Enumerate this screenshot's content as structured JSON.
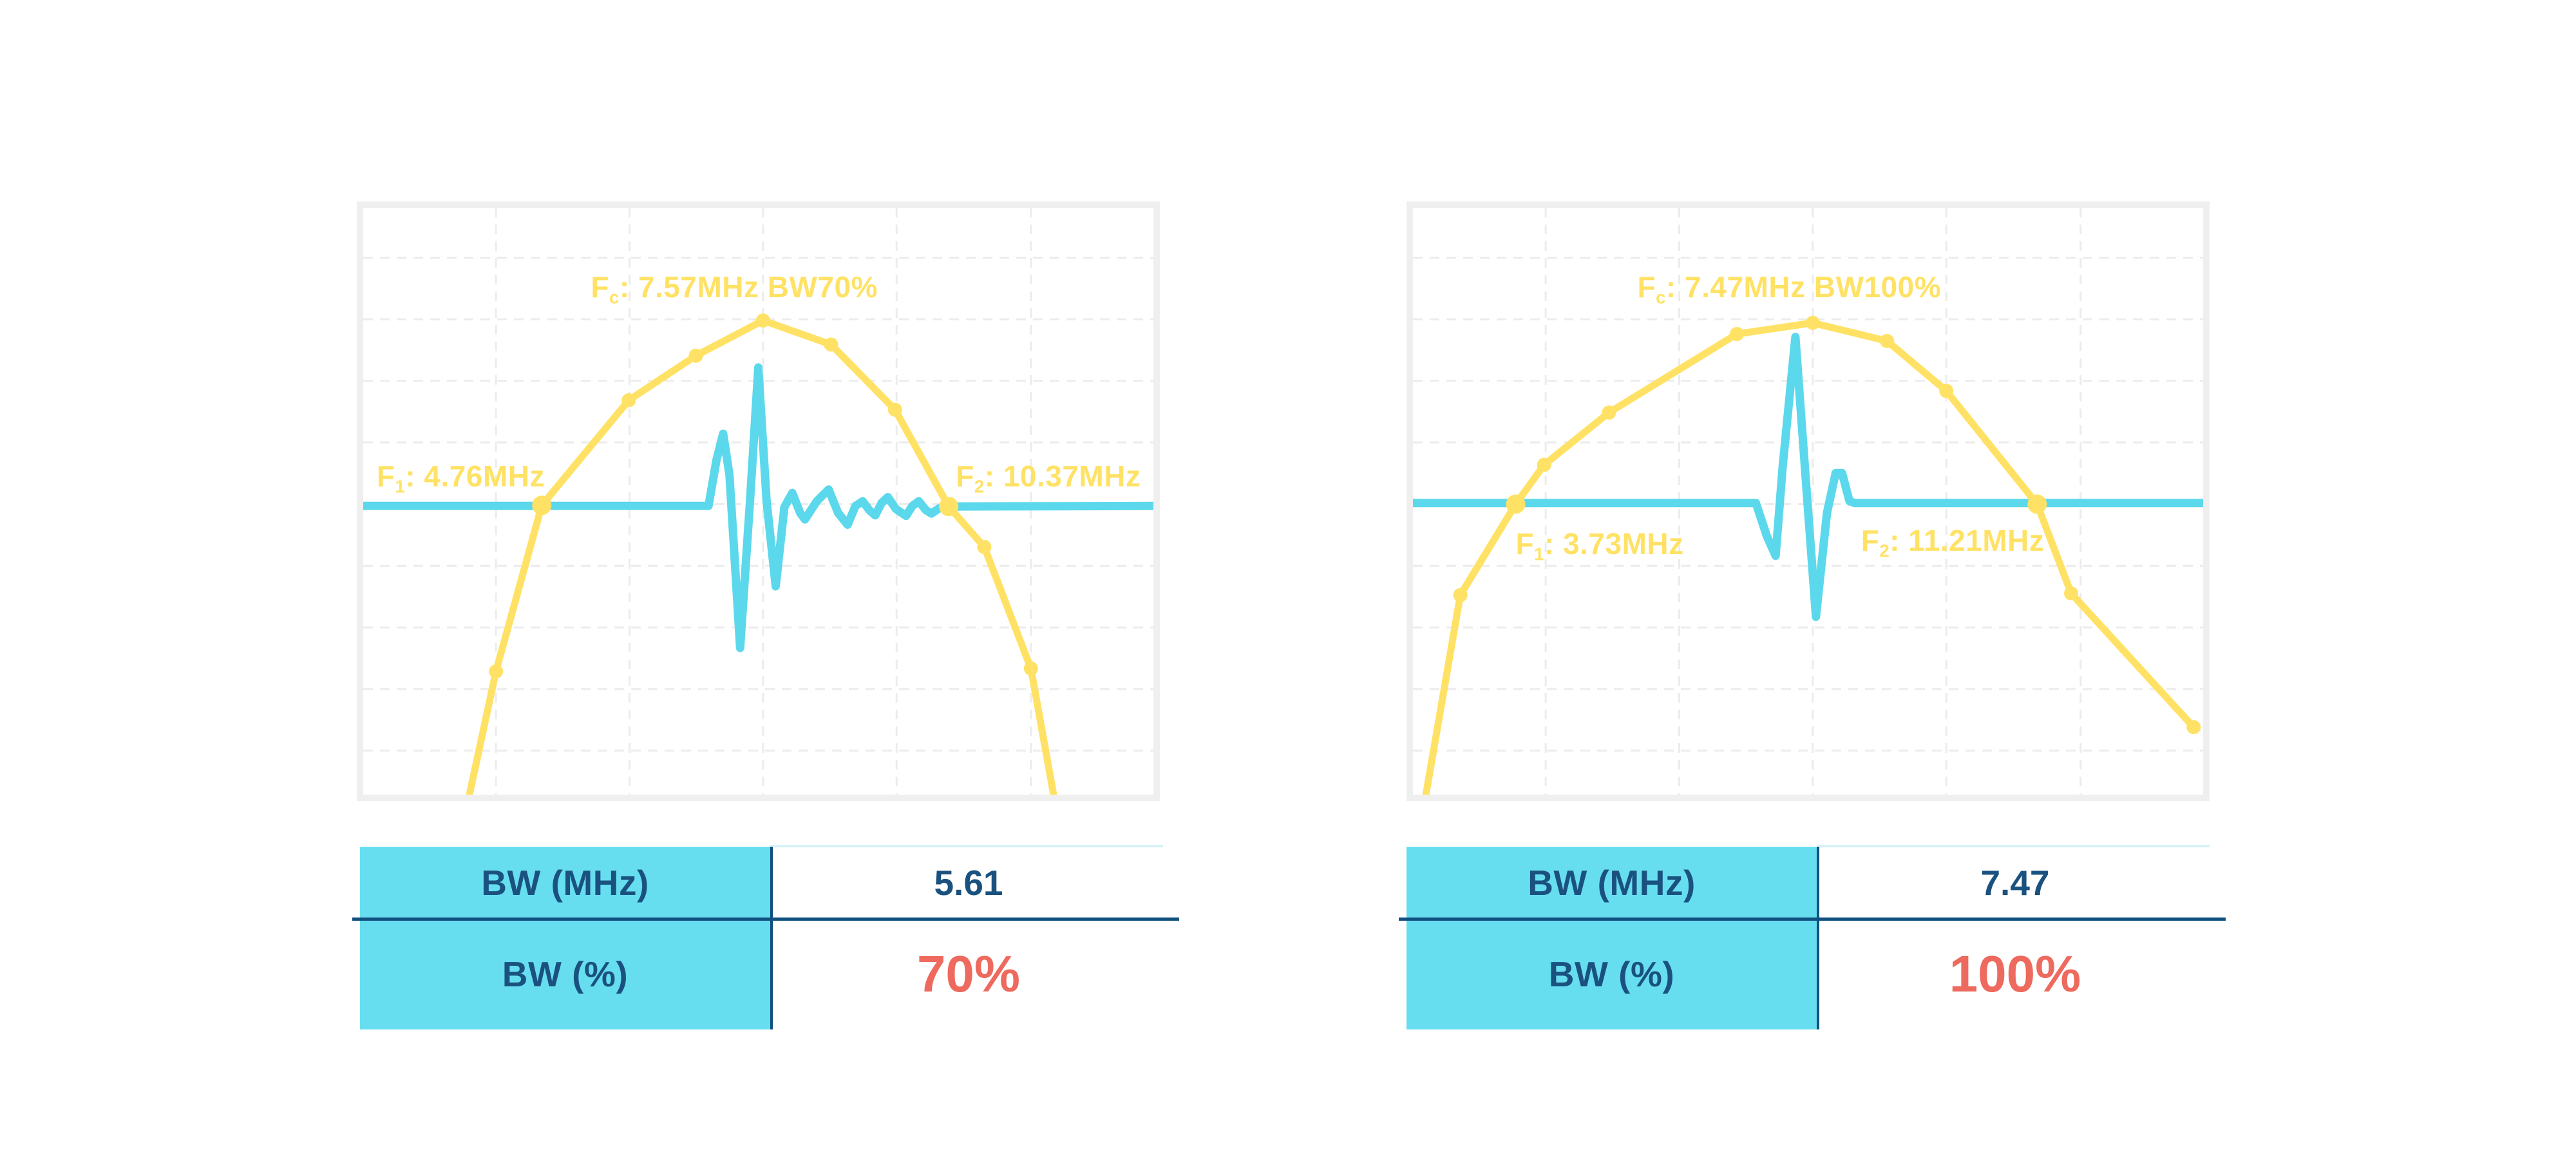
{
  "colors": {
    "spectrum_yellow": "#FFE265",
    "pulse_cyan": "#5BD8EC",
    "table_header_bg": "#67DEF0",
    "table_text_navy": "#1A517F",
    "table_line_navy": "#10507E",
    "value_red": "#EE6A5E",
    "chart_border_gray": "#EFEFEF",
    "grid_gray": "#ECECEC",
    "table_topline": "#D7F1F7"
  },
  "chart_data": [
    {
      "type": "line",
      "description": "Transducer pulse spectrum (yellow, frequency domain) with overlaid pulse waveform (cyan, time domain), 70% bandwidth",
      "title": {
        "prefix": "F",
        "sub": "c",
        "rest": ": 7.57MHz BW70%"
      },
      "f1_label": {
        "prefix": "F",
        "sub": "1",
        "rest": ": 4.76MHz"
      },
      "f2_label": {
        "prefix": "F",
        "sub": "2",
        "rest": ": 10.37MHz"
      },
      "key_values": {
        "fc_mhz": 7.57,
        "f1_mhz": 4.76,
        "f2_mhz": 10.37,
        "bw_mhz": 5.61,
        "bw_pct": 70
      },
      "grid": {
        "x": [
          0.168,
          0.337,
          0.506,
          0.675,
          0.845
        ],
        "y": [
          0.085,
          0.19,
          0.295,
          0.4,
          0.505,
          0.61,
          0.715,
          0.82,
          0.925
        ]
      },
      "series": [
        {
          "name": "spectrum",
          "color": "#FFE265",
          "width": 11,
          "points": [
            [
              0.128,
              1.04
            ],
            [
              0.168,
              0.79
            ],
            [
              0.226,
              0.507
            ],
            [
              0.336,
              0.328
            ],
            [
              0.421,
              0.252
            ],
            [
              0.506,
              0.192
            ],
            [
              0.592,
              0.233
            ],
            [
              0.673,
              0.344
            ],
            [
              0.741,
              0.509
            ],
            [
              0.786,
              0.578
            ],
            [
              0.845,
              0.785
            ],
            [
              0.879,
              1.04
            ]
          ],
          "marker_indices": [
            1,
            2,
            3,
            4,
            5,
            6,
            7,
            8,
            9,
            10
          ],
          "big_marker_indices": [
            2,
            8
          ]
        },
        {
          "name": "pulse",
          "color": "#5BD8EC",
          "width": 13,
          "points": [
            [
              0,
              0.508
            ],
            [
              0.437,
              0.508
            ],
            [
              0.447,
              0.43
            ],
            [
              0.4555,
              0.385
            ],
            [
              0.4635,
              0.455
            ],
            [
              0.477,
              0.75
            ],
            [
              0.4895,
              0.5
            ],
            [
              0.5,
              0.272
            ],
            [
              0.5105,
              0.5
            ],
            [
              0.522,
              0.645
            ],
            [
              0.533,
              0.51
            ],
            [
              0.543,
              0.486
            ],
            [
              0.553,
              0.52
            ],
            [
              0.559,
              0.531
            ],
            [
              0.574,
              0.5
            ],
            [
              0.589,
              0.48
            ],
            [
              0.601,
              0.52
            ],
            [
              0.613,
              0.54
            ],
            [
              0.623,
              0.508
            ],
            [
              0.632,
              0.5
            ],
            [
              0.641,
              0.516
            ],
            [
              0.648,
              0.524
            ],
            [
              0.656,
              0.503
            ],
            [
              0.664,
              0.493
            ],
            [
              0.674,
              0.513
            ],
            [
              0.687,
              0.525
            ],
            [
              0.695,
              0.508
            ],
            [
              0.703,
              0.5
            ],
            [
              0.712,
              0.515
            ],
            [
              0.719,
              0.521
            ],
            [
              0.729,
              0.512
            ],
            [
              0.741,
              0.509
            ],
            [
              1,
              0.508
            ]
          ]
        }
      ],
      "table": {
        "rows": [
          {
            "label": "BW (MHz)",
            "value": "5.61",
            "style": "navy"
          },
          {
            "label": "BW (%)",
            "value": "70%",
            "style": "red"
          }
        ]
      }
    },
    {
      "type": "line",
      "description": "Transducer pulse spectrum (yellow, frequency domain) with overlaid pulse waveform (cyan, time domain), 100% bandwidth",
      "title": {
        "prefix": "F",
        "sub": "c",
        "rest": ": 7.47MHz BW100%"
      },
      "f1_label": {
        "prefix": "F",
        "sub": "1",
        "rest": ": 3.73MHz"
      },
      "f2_label": {
        "prefix": "F",
        "sub": "2",
        "rest": ": 11.21MHz"
      },
      "key_values": {
        "fc_mhz": 7.47,
        "f1_mhz": 3.73,
        "f2_mhz": 11.21,
        "bw_mhz": 7.47,
        "bw_pct": 100
      },
      "grid": {
        "x": [
          0.168,
          0.337,
          0.506,
          0.675,
          0.845
        ],
        "y": [
          0.085,
          0.19,
          0.295,
          0.4,
          0.505,
          0.61,
          0.715,
          0.82,
          0.925
        ]
      },
      "series": [
        {
          "name": "spectrum",
          "color": "#FFE265",
          "width": 11,
          "points": [
            [
              0.01,
              1.05
            ],
            [
              0.06,
              0.66
            ],
            [
              0.13,
              0.505
            ],
            [
              0.166,
              0.438
            ],
            [
              0.248,
              0.349
            ],
            [
              0.41,
              0.215
            ],
            [
              0.506,
              0.196
            ],
            [
              0.6,
              0.227
            ],
            [
              0.675,
              0.312
            ],
            [
              0.79,
              0.505
            ],
            [
              0.833,
              0.657
            ],
            [
              0.988,
              0.885
            ]
          ],
          "marker_indices": [
            1,
            2,
            3,
            4,
            5,
            6,
            7,
            8,
            9,
            10,
            11
          ],
          "big_marker_indices": [
            2,
            9
          ]
        },
        {
          "name": "pulse",
          "color": "#5BD8EC",
          "width": 13,
          "points": [
            [
              0,
              0.503
            ],
            [
              0.434,
              0.503
            ],
            [
              0.448,
              0.56
            ],
            [
              0.459,
              0.593
            ],
            [
              0.468,
              0.44
            ],
            [
              0.484,
              0.22
            ],
            [
              0.497,
              0.46
            ],
            [
              0.51,
              0.697
            ],
            [
              0.524,
              0.52
            ],
            [
              0.535,
              0.452
            ],
            [
              0.543,
              0.452
            ],
            [
              0.5525,
              0.5
            ],
            [
              0.559,
              0.503
            ],
            [
              1,
              0.503
            ]
          ]
        }
      ],
      "table": {
        "rows": [
          {
            "label": "BW (MHz)",
            "value": "7.47",
            "style": "navy"
          },
          {
            "label": "BW (%)",
            "value": "100%",
            "style": "red"
          }
        ]
      }
    }
  ]
}
